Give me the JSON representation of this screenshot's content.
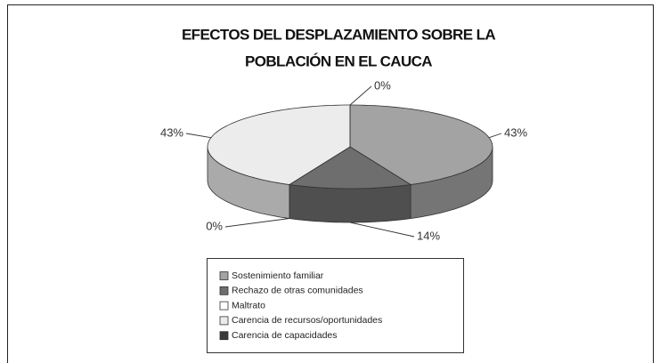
{
  "chart_data": {
    "type": "pie3d",
    "title": [
      "EFECTOS DEL DESPLAZAMIENTO SOBRE LA",
      "POBLACIÓN EN EL CAUCA"
    ],
    "categories": [
      "Sostenimiento familiar",
      "Rechazo de otras comunidades",
      "Maltrato",
      "Carencia de recursos/oportunidades",
      "Carencia de capacidades"
    ],
    "values": [
      43,
      14,
      0,
      43,
      0
    ],
    "value_labels": [
      "43%",
      "14%",
      "0%",
      "43%",
      "0%"
    ],
    "colors": [
      "#a3a3a3",
      "#6e6e6e",
      "#ffffff",
      "#ececec",
      "#3a3a3a"
    ]
  }
}
